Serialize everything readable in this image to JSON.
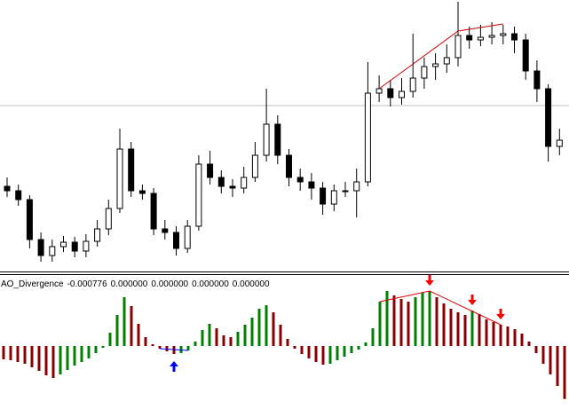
{
  "chart_data": [
    {
      "type": "candlestick",
      "open": [
        90,
        85,
        75,
        30,
        12,
        22,
        27,
        17,
        28,
        42,
        65,
        132,
        85,
        82,
        42,
        38,
        20,
        45,
        115,
        100,
        90,
        88,
        100,
        125,
        160,
        125,
        100,
        95,
        88,
        70,
        85,
        85,
        95,
        195,
        200,
        190,
        197,
        212,
        225,
        228,
        235,
        260,
        255,
        258,
        260,
        262,
        255,
        220,
        200,
        135
      ],
      "high": [
        100,
        92,
        80,
        38,
        30,
        34,
        33,
        36,
        52,
        75,
        155,
        140,
        92,
        88,
        52,
        45,
        52,
        125,
        130,
        108,
        98,
        112,
        140,
        200,
        170,
        132,
        110,
        105,
        95,
        92,
        95,
        110,
        230,
        215,
        210,
        212,
        262,
        235,
        240,
        250,
        298,
        270,
        272,
        275,
        272,
        270,
        262,
        232,
        205,
        155
      ],
      "low": [
        78,
        68,
        20,
        5,
        5,
        16,
        10,
        10,
        22,
        35,
        60,
        78,
        75,
        35,
        30,
        12,
        15,
        40,
        92,
        82,
        78,
        82,
        95,
        118,
        115,
        90,
        85,
        75,
        58,
        62,
        78,
        55,
        90,
        185,
        180,
        182,
        190,
        200,
        210,
        218,
        225,
        245,
        248,
        250,
        250,
        240,
        210,
        185,
        118,
        125
      ],
      "close": [
        85,
        75,
        30,
        12,
        22,
        27,
        17,
        28,
        42,
        65,
        132,
        85,
        82,
        42,
        38,
        20,
        45,
        115,
        100,
        90,
        88,
        100,
        125,
        160,
        125,
        100,
        95,
        88,
        70,
        85,
        85,
        95,
        195,
        200,
        190,
        197,
        212,
        225,
        228,
        235,
        260,
        255,
        258,
        260,
        262,
        255,
        220,
        200,
        135,
        142
      ],
      "ylim": [
        -5,
        300
      ],
      "hline": 181,
      "hline_color": "#c0c0c0",
      "up_color": "#ffffff",
      "down_color": "#000000",
      "trendline": {
        "indices": [
          33,
          40,
          44
        ],
        "values": [
          200,
          265,
          273
        ],
        "color": "#cc0000"
      }
    },
    {
      "type": "histogram",
      "indicator_label": "AO_Divergence",
      "readouts": [
        "-0.000776",
        "0.000000",
        "0.000000",
        "0.000000",
        "0.000000"
      ],
      "values": [
        -0.000195,
        -0.000208,
        -0.000234,
        -0.00026,
        -0.000312,
        -0.000364,
        -0.000429,
        -0.000468,
        -0.000416,
        -0.000351,
        -0.000286,
        -0.000234,
        -0.000182,
        -0.000104,
        -2.6e-05,
        0.000195,
        0.000455,
        0.000715,
        0.000585,
        0.000325,
        0.00013,
        2.6e-05,
        -3.9e-05,
        -7.8e-05,
        -0.000117,
        -0.000104,
        -6.5e-05,
        6.5e-05,
        0.000234,
        0.000325,
        0.00026,
        0.000156,
        0.00013,
        0.000208,
        0.000312,
        0.000416,
        0.000546,
        0.000598,
        0.000494,
        0.000312,
        0.000104,
        -3.9e-05,
        -0.000117,
        -0.000182,
        -0.000234,
        -0.000273,
        -0.00026,
        -0.000208,
        -0.000156,
        -0.000104,
        -5.2e-05,
        5.2e-05,
        0.00026,
        0.00065,
        0.000806,
        0.000741,
        0.000689,
        0.00065,
        0.000715,
        0.00078,
        0.000806,
        0.000715,
        0.000624,
        0.000546,
        0.000494,
        0.000455,
        0.00052,
        0.000468,
        0.00039,
        0.000351,
        0.000312,
        0.000286,
        0.000247,
        0.000182,
        6.5e-05,
        -0.000104,
        -0.00026,
        -0.000416,
        -0.000585,
        -0.000776
      ],
      "ylim": [
        -0.000884,
        0.001014
      ],
      "up_color": "#008000",
      "down_color": "#8b0000",
      "divergence_lines": [
        {
          "bars": [
            53,
            60,
            70
          ],
          "color": "#e00000"
        },
        {
          "bars": [
            22,
            26
          ],
          "color": "#0000ff"
        }
      ],
      "signals": [
        {
          "index": 24,
          "direction": "up",
          "color": "#0000ff"
        },
        {
          "index": 60,
          "direction": "down",
          "color": "#ff0000"
        },
        {
          "index": 66,
          "direction": "down",
          "color": "#ff0000"
        },
        {
          "index": 70,
          "direction": "down",
          "color": "#ff0000"
        }
      ]
    }
  ]
}
